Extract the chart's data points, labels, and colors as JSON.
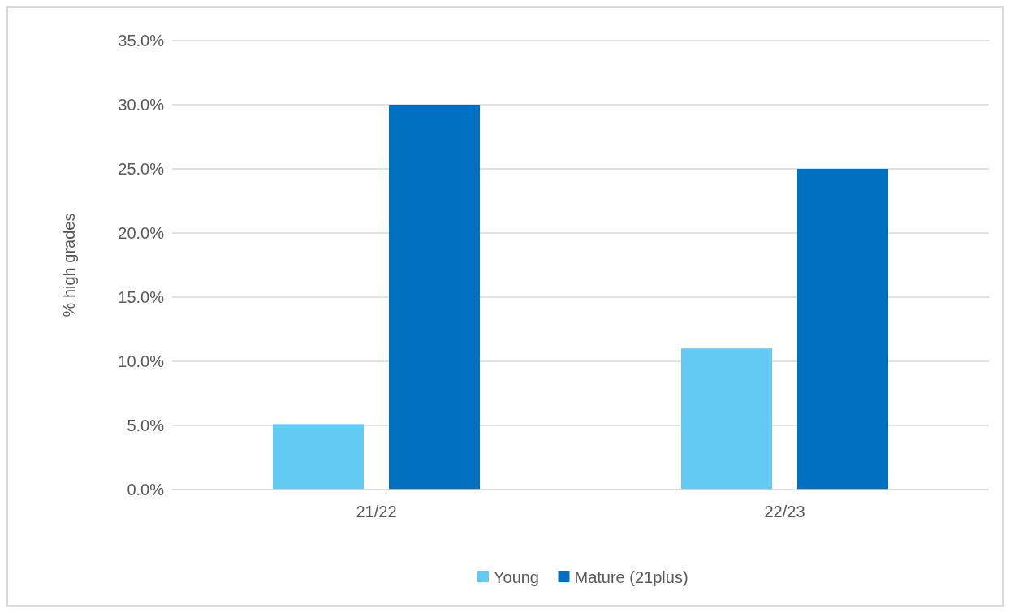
{
  "chart_data": {
    "type": "bar",
    "ylabel": "% high grades",
    "categories": [
      "21/22",
      "22/23"
    ],
    "series": [
      {
        "name": "Young",
        "color": "#63cbf3",
        "values": [
          5.1,
          11.0
        ]
      },
      {
        "name": "Mature (21plus)",
        "color": "#0070c0",
        "values": [
          30.0,
          25.0
        ]
      }
    ],
    "ylim": [
      0,
      35
    ],
    "yticks": [
      {
        "value": 0,
        "label": "0.0%"
      },
      {
        "value": 5,
        "label": "5.0%"
      },
      {
        "value": 10,
        "label": "10.0%"
      },
      {
        "value": 15,
        "label": "15.0%"
      },
      {
        "value": 20,
        "label": "20.0%"
      },
      {
        "value": 25,
        "label": "25.0%"
      },
      {
        "value": 30,
        "label": "30.0%"
      },
      {
        "value": 35,
        "label": "35.0%"
      }
    ],
    "grid": "y",
    "legend": "bottom"
  }
}
